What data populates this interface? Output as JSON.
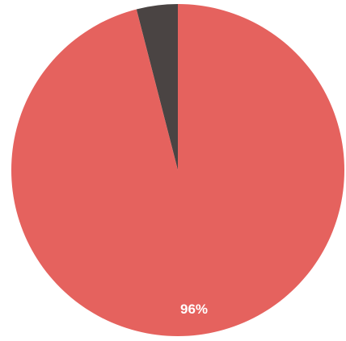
{
  "chart_data": {
    "type": "pie",
    "slices": [
      {
        "label": "96%",
        "value": 96,
        "color": "#e5625e",
        "show_label": true
      },
      {
        "label": "4%",
        "value": 4,
        "color": "#4a4443",
        "show_label": false
      }
    ],
    "start": "top",
    "direction": "counterclockwise-for-small-slice"
  }
}
